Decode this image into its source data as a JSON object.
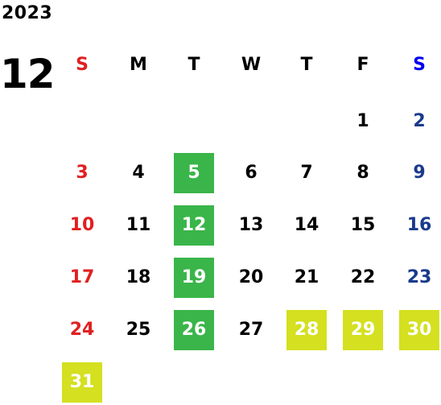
{
  "year": "2023",
  "month": "12",
  "colors": {
    "black": "#000000",
    "sunday": "#e02020",
    "saturday": "#1a3a8c",
    "saturday_header": "#0000ee",
    "highlight_green": "#3ab54a",
    "highlight_yellow": "#d4e020",
    "highlight_text": "#ffffff"
  },
  "weekdays": [
    {
      "label": "S",
      "type": "sunday"
    },
    {
      "label": "M",
      "type": "weekday"
    },
    {
      "label": "T",
      "type": "weekday"
    },
    {
      "label": "W",
      "type": "weekday"
    },
    {
      "label": "T",
      "type": "weekday"
    },
    {
      "label": "F",
      "type": "weekday"
    },
    {
      "label": "S",
      "type": "saturday"
    }
  ],
  "days": [
    {
      "label": "1",
      "col": 5,
      "row": 0,
      "highlight": null
    },
    {
      "label": "2",
      "col": 6,
      "row": 0,
      "highlight": null
    },
    {
      "label": "3",
      "col": 0,
      "row": 1,
      "highlight": null
    },
    {
      "label": "4",
      "col": 1,
      "row": 1,
      "highlight": null
    },
    {
      "label": "5",
      "col": 2,
      "row": 1,
      "highlight": "green"
    },
    {
      "label": "6",
      "col": 3,
      "row": 1,
      "highlight": null
    },
    {
      "label": "7",
      "col": 4,
      "row": 1,
      "highlight": null
    },
    {
      "label": "8",
      "col": 5,
      "row": 1,
      "highlight": null
    },
    {
      "label": "9",
      "col": 6,
      "row": 1,
      "highlight": null
    },
    {
      "label": "10",
      "col": 0,
      "row": 2,
      "highlight": null
    },
    {
      "label": "11",
      "col": 1,
      "row": 2,
      "highlight": null
    },
    {
      "label": "12",
      "col": 2,
      "row": 2,
      "highlight": "green"
    },
    {
      "label": "13",
      "col": 3,
      "row": 2,
      "highlight": null
    },
    {
      "label": "14",
      "col": 4,
      "row": 2,
      "highlight": null
    },
    {
      "label": "15",
      "col": 5,
      "row": 2,
      "highlight": null
    },
    {
      "label": "16",
      "col": 6,
      "row": 2,
      "highlight": null
    },
    {
      "label": "17",
      "col": 0,
      "row": 3,
      "highlight": null
    },
    {
      "label": "18",
      "col": 1,
      "row": 3,
      "highlight": null
    },
    {
      "label": "19",
      "col": 2,
      "row": 3,
      "highlight": "green"
    },
    {
      "label": "20",
      "col": 3,
      "row": 3,
      "highlight": null
    },
    {
      "label": "21",
      "col": 4,
      "row": 3,
      "highlight": null
    },
    {
      "label": "22",
      "col": 5,
      "row": 3,
      "highlight": null
    },
    {
      "label": "23",
      "col": 6,
      "row": 3,
      "highlight": null
    },
    {
      "label": "24",
      "col": 0,
      "row": 4,
      "highlight": null
    },
    {
      "label": "25",
      "col": 1,
      "row": 4,
      "highlight": null
    },
    {
      "label": "26",
      "col": 2,
      "row": 4,
      "highlight": "green"
    },
    {
      "label": "27",
      "col": 3,
      "row": 4,
      "highlight": null
    },
    {
      "label": "28",
      "col": 4,
      "row": 4,
      "highlight": "yellow"
    },
    {
      "label": "29",
      "col": 5,
      "row": 4,
      "highlight": "yellow"
    },
    {
      "label": "30",
      "col": 6,
      "row": 4,
      "highlight": "yellow"
    },
    {
      "label": "31",
      "col": 0,
      "row": 5,
      "highlight": "yellow"
    }
  ]
}
